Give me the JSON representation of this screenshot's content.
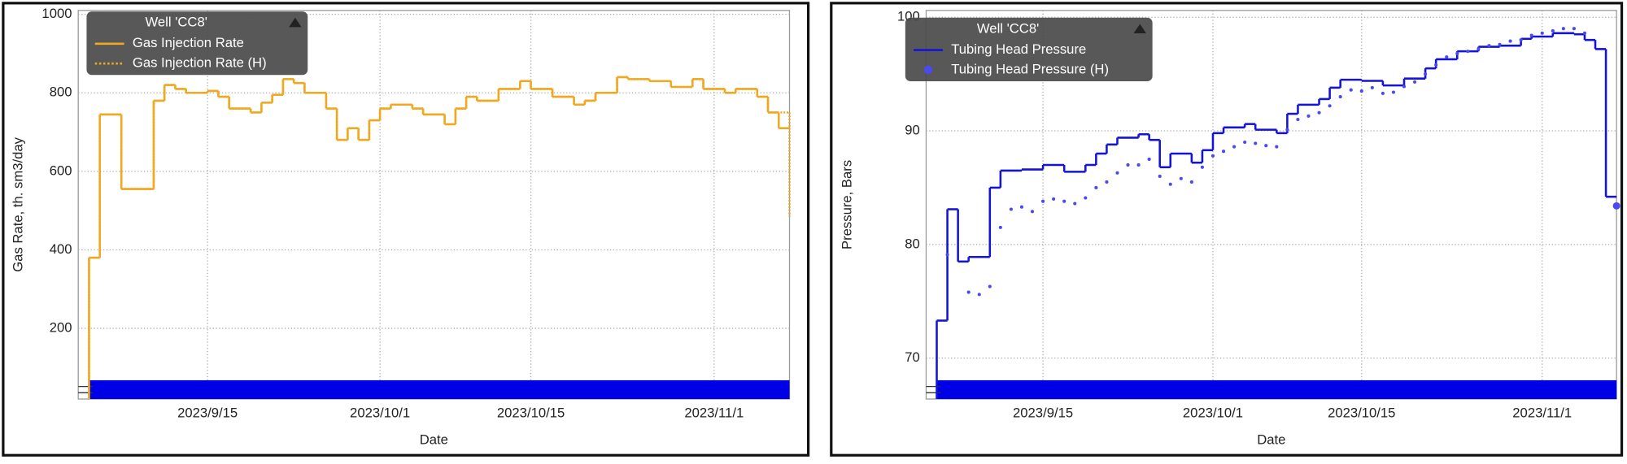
{
  "chart_data": [
    {
      "type": "line",
      "ylabel": "Gas Rate, th. sm3/day",
      "xlabel": "Date",
      "legend_title": "Well 'CC8'",
      "xlim": [
        "2023/9/3",
        "2023/11/8"
      ],
      "xticks": [
        "2023/9/15",
        "2023/10/1",
        "2023/10/15",
        "2023/11/1"
      ],
      "ylim": [
        20,
        1010
      ],
      "yticks": [
        200,
        400,
        600,
        800,
        1000
      ],
      "grid": true,
      "series": [
        {
          "name": "Gas Injection Rate",
          "color": "#f0a820",
          "style": "step",
          "x": [
            "2023/9/4",
            "2023/9/5",
            "2023/9/7",
            "2023/9/10",
            "2023/9/11",
            "2023/9/12",
            "2023/9/13",
            "2023/9/15",
            "2023/9/16",
            "2023/9/17",
            "2023/9/19",
            "2023/9/20",
            "2023/9/21",
            "2023/9/22",
            "2023/9/23",
            "2023/9/24",
            "2023/9/26",
            "2023/9/27",
            "2023/9/28",
            "2023/9/29",
            "2023/9/30",
            "2023/10/1",
            "2023/10/2",
            "2023/10/4",
            "2023/10/5",
            "2023/10/7",
            "2023/10/8",
            "2023/10/9",
            "2023/10/10",
            "2023/10/12",
            "2023/10/14",
            "2023/10/15",
            "2023/10/17",
            "2023/10/19",
            "2023/10/20",
            "2023/10/21",
            "2023/10/23",
            "2023/10/24",
            "2023/10/26",
            "2023/10/28",
            "2023/10/30",
            "2023/10/31",
            "2023/11/2",
            "2023/11/3",
            "2023/11/5",
            "2023/11/6",
            "2023/11/7"
          ],
          "values": [
            380,
            745,
            555,
            780,
            820,
            810,
            800,
            805,
            790,
            760,
            750,
            775,
            795,
            835,
            825,
            800,
            760,
            680,
            710,
            680,
            730,
            760,
            770,
            760,
            745,
            720,
            760,
            790,
            780,
            810,
            830,
            810,
            790,
            770,
            780,
            800,
            840,
            835,
            830,
            815,
            835,
            810,
            800,
            810,
            790,
            750,
            710
          ]
        },
        {
          "name": "Gas Injection Rate (H)",
          "color": "#f0a820",
          "style": "dotted-step",
          "x": [
            "2023/9/4",
            "2023/9/5",
            "2023/9/7",
            "2023/9/10",
            "2023/9/11",
            "2023/9/12",
            "2023/9/13",
            "2023/9/15",
            "2023/9/16",
            "2023/9/17",
            "2023/9/19",
            "2023/9/20",
            "2023/9/21",
            "2023/9/22",
            "2023/9/23",
            "2023/9/24",
            "2023/9/26",
            "2023/9/27",
            "2023/9/28",
            "2023/9/29",
            "2023/9/30",
            "2023/10/1",
            "2023/10/2",
            "2023/10/4",
            "2023/10/5",
            "2023/10/7",
            "2023/10/8",
            "2023/10/9",
            "2023/10/10",
            "2023/10/12",
            "2023/10/14",
            "2023/10/15",
            "2023/10/17",
            "2023/10/19",
            "2023/10/20",
            "2023/10/21",
            "2023/10/23",
            "2023/10/24",
            "2023/10/26",
            "2023/10/28",
            "2023/10/30",
            "2023/10/31",
            "2023/11/2",
            "2023/11/3",
            "2023/11/5",
            "2023/11/6",
            "2023/11/8"
          ],
          "values": [
            380,
            745,
            555,
            780,
            820,
            810,
            800,
            805,
            790,
            760,
            750,
            775,
            795,
            835,
            825,
            800,
            760,
            680,
            710,
            680,
            730,
            760,
            770,
            760,
            745,
            720,
            760,
            790,
            780,
            810,
            830,
            810,
            790,
            770,
            780,
            800,
            840,
            835,
            830,
            815,
            835,
            810,
            800,
            810,
            790,
            750,
            485
          ]
        }
      ]
    },
    {
      "type": "line",
      "ylabel": "Pressure, Bars",
      "xlabel": "Date",
      "legend_title": "Well 'CC8'",
      "xlim": [
        "2023/9/4",
        "2023/11/8"
      ],
      "xticks": [
        "2023/9/15",
        "2023/10/1",
        "2023/10/15",
        "2023/11/1"
      ],
      "ylim": [
        66.4,
        100.6
      ],
      "yticks": [
        70,
        80,
        90,
        100
      ],
      "grid": true,
      "series": [
        {
          "name": "Tubing Head Pressure",
          "color": "#1414d8",
          "style": "step",
          "x": [
            "2023/9/5",
            "2023/9/6",
            "2023/9/7",
            "2023/9/8",
            "2023/9/10",
            "2023/9/11",
            "2023/9/13",
            "2023/9/15",
            "2023/9/17",
            "2023/9/19",
            "2023/9/20",
            "2023/9/21",
            "2023/9/22",
            "2023/9/24",
            "2023/9/25",
            "2023/9/26",
            "2023/9/27",
            "2023/9/29",
            "2023/9/30",
            "2023/10/1",
            "2023/10/2",
            "2023/10/4",
            "2023/10/5",
            "2023/10/7",
            "2023/10/8",
            "2023/10/9",
            "2023/10/11",
            "2023/10/12",
            "2023/10/13",
            "2023/10/15",
            "2023/10/17",
            "2023/10/19",
            "2023/10/21",
            "2023/10/22",
            "2023/10/24",
            "2023/10/26",
            "2023/10/28",
            "2023/10/30",
            "2023/10/31",
            "2023/11/2",
            "2023/11/4",
            "2023/11/5",
            "2023/11/6",
            "2023/11/7"
          ],
          "values": [
            73.3,
            83.1,
            78.5,
            78.9,
            85.0,
            86.5,
            86.6,
            87.0,
            86.4,
            87.0,
            88.0,
            88.8,
            89.4,
            89.7,
            89.2,
            86.8,
            88.0,
            87.2,
            88.3,
            89.8,
            90.3,
            90.6,
            90.1,
            89.8,
            91.5,
            92.3,
            92.8,
            93.8,
            94.5,
            94.4,
            94.0,
            94.6,
            95.5,
            96.3,
            97.0,
            97.4,
            97.5,
            98.1,
            98.3,
            98.6,
            98.5,
            98.0,
            97.2,
            84.2
          ]
        },
        {
          "name": "Tubing Head Pressure (H)",
          "color": "#4a4af5",
          "style": "points",
          "x": [
            "2023/9/6",
            "2023/9/8",
            "2023/9/9",
            "2023/9/10",
            "2023/9/11",
            "2023/9/12",
            "2023/9/13",
            "2023/9/14",
            "2023/9/15",
            "2023/9/16",
            "2023/9/17",
            "2023/9/18",
            "2023/9/19",
            "2023/9/20",
            "2023/9/21",
            "2023/9/22",
            "2023/9/23",
            "2023/9/24",
            "2023/9/25",
            "2023/9/26",
            "2023/9/27",
            "2023/9/28",
            "2023/9/29",
            "2023/9/30",
            "2023/10/1",
            "2023/10/2",
            "2023/10/3",
            "2023/10/4",
            "2023/10/5",
            "2023/10/6",
            "2023/10/7",
            "2023/10/8",
            "2023/10/9",
            "2023/10/10",
            "2023/10/11",
            "2023/10/12",
            "2023/10/13",
            "2023/10/14",
            "2023/10/15",
            "2023/10/16",
            "2023/10/17",
            "2023/10/18",
            "2023/10/19",
            "2023/10/20",
            "2023/10/21",
            "2023/10/22",
            "2023/10/23",
            "2023/10/24",
            "2023/10/25",
            "2023/10/26",
            "2023/10/27",
            "2023/10/28",
            "2023/10/29",
            "2023/10/30",
            "2023/10/31",
            "2023/11/1",
            "2023/11/2",
            "2023/11/3",
            "2023/11/4",
            "2023/11/5",
            "2023/11/8"
          ],
          "values": [
            79.1,
            75.8,
            75.6,
            76.3,
            81.5,
            83.1,
            83.3,
            82.9,
            83.8,
            84.0,
            83.8,
            83.6,
            84.1,
            85.0,
            85.5,
            86.3,
            87.0,
            87.0,
            87.5,
            86.0,
            85.3,
            85.8,
            85.5,
            86.8,
            87.8,
            88.2,
            88.6,
            89.0,
            88.9,
            88.7,
            88.6,
            90.1,
            91.0,
            91.3,
            91.6,
            92.2,
            93.0,
            93.6,
            93.5,
            93.8,
            93.3,
            93.4,
            93.9,
            94.3,
            95.0,
            95.8,
            96.5,
            96.8,
            97.0,
            97.2,
            97.5,
            97.6,
            97.9,
            98.0,
            98.4,
            98.6,
            98.8,
            99.0,
            99.0,
            98.6,
            83.4
          ]
        }
      ]
    }
  ]
}
